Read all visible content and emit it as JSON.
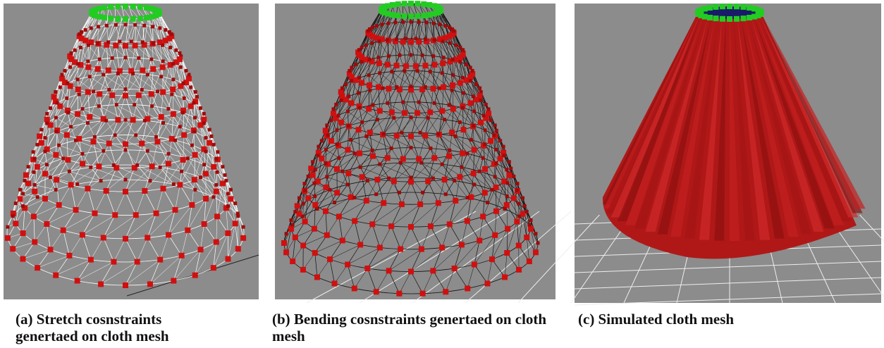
{
  "captions": [
    "(a) Stretch cosnstraints genertaed on cloth mesh",
    "(b) Bending cosnstraints genertaed on cloth mesh",
    "(c) Simulated cloth mesh"
  ]
}
